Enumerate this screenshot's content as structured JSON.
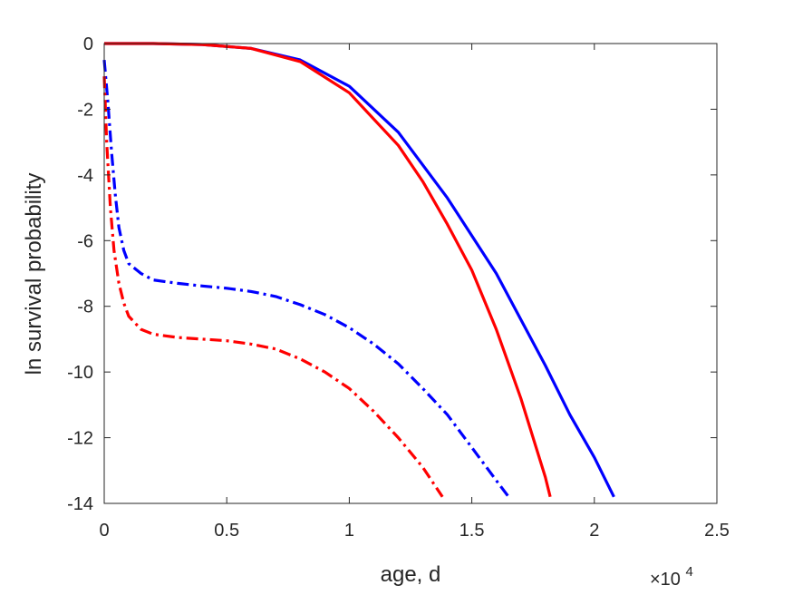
{
  "chart_data": {
    "type": "line",
    "title": "",
    "xlabel": "age, d",
    "ylabel": "ln survival probability",
    "xlim": [
      0,
      25000
    ],
    "ylim": [
      -14,
      0
    ],
    "x_multiplier_label": "×10",
    "x_multiplier_exponent": "4",
    "x_ticks": [
      0,
      5000,
      10000,
      15000,
      20000,
      25000
    ],
    "x_tick_labels": [
      "0",
      "0.5",
      "1",
      "1.5",
      "2",
      "2.5"
    ],
    "y_ticks": [
      0,
      -2,
      -4,
      -6,
      -8,
      -10,
      -12,
      -14
    ],
    "y_tick_labels": [
      "0",
      "-2",
      "-4",
      "-6",
      "-8",
      "-10",
      "-12",
      "-14"
    ],
    "grid": false,
    "legend": false,
    "series": [
      {
        "color": "#0000ff",
        "style": "solid",
        "x": [
          0,
          2000,
          4000,
          6000,
          8000,
          10000,
          12000,
          14000,
          16000,
          18000,
          19000,
          20000,
          20800
        ],
        "y": [
          0,
          0,
          -0.03,
          -0.15,
          -0.5,
          -1.3,
          -2.7,
          -4.7,
          -7.0,
          -9.8,
          -11.3,
          -12.6,
          -13.8
        ]
      },
      {
        "color": "#ff0000",
        "style": "solid",
        "x": [
          0,
          2000,
          4000,
          6000,
          8000,
          10000,
          11000,
          12000,
          13000,
          14000,
          15000,
          16000,
          17000,
          18000,
          18200
        ],
        "y": [
          0,
          0,
          -0.03,
          -0.15,
          -0.55,
          -1.5,
          -2.3,
          -3.1,
          -4.2,
          -5.5,
          -6.9,
          -8.7,
          -10.8,
          -13.2,
          -13.8
        ]
      },
      {
        "color": "#0000ff",
        "style": "dashdot",
        "x": [
          0,
          150,
          300,
          450,
          600,
          800,
          1000,
          1500,
          2000,
          3000,
          4000,
          5000,
          6000,
          7000,
          8000,
          9000,
          10000,
          11000,
          12000,
          13000,
          14000,
          15000,
          16000,
          16500
        ],
        "y": [
          -0.5,
          -1.8,
          -3.3,
          -4.6,
          -5.6,
          -6.3,
          -6.7,
          -7.0,
          -7.2,
          -7.3,
          -7.38,
          -7.45,
          -7.55,
          -7.7,
          -7.95,
          -8.25,
          -8.65,
          -9.15,
          -9.75,
          -10.5,
          -11.3,
          -12.3,
          -13.3,
          -13.8
        ]
      },
      {
        "color": "#ff0000",
        "style": "dashdot",
        "x": [
          0,
          100,
          250,
          400,
          600,
          800,
          1000,
          1500,
          2000,
          3000,
          4000,
          5000,
          6000,
          7000,
          8000,
          9000,
          10000,
          11000,
          12000,
          13000,
          13800
        ],
        "y": [
          -1.0,
          -3.0,
          -5.0,
          -6.3,
          -7.3,
          -7.9,
          -8.3,
          -8.7,
          -8.85,
          -8.95,
          -9.0,
          -9.05,
          -9.15,
          -9.3,
          -9.6,
          -10.0,
          -10.5,
          -11.2,
          -12.0,
          -12.9,
          -13.8
        ]
      }
    ]
  }
}
